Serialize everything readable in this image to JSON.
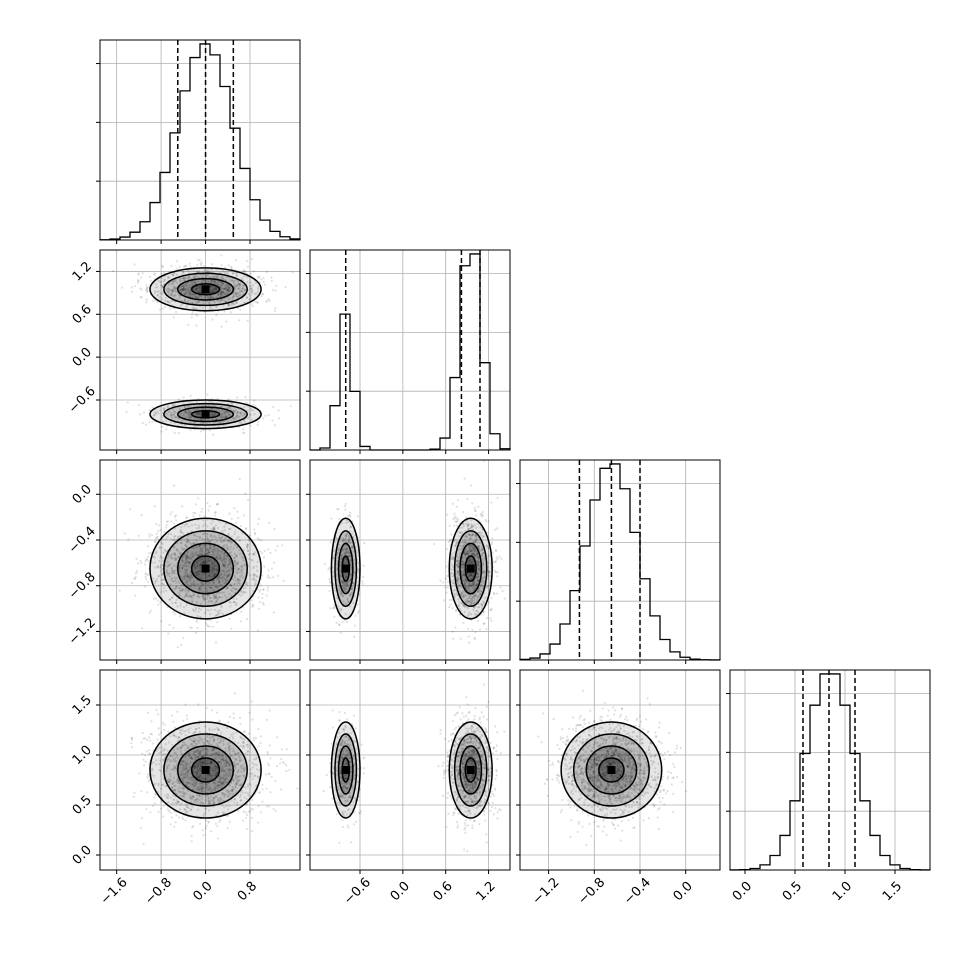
{
  "chart_data": {
    "type": "corner",
    "n_params": 4,
    "params": [
      {
        "index": 0,
        "range": [
          -1.9,
          1.7
        ],
        "ticks": [
          -1.6,
          -0.8,
          0.0,
          0.8
        ],
        "tick_labels": [
          "−1.6",
          "−0.8",
          "0.0",
          "0.8"
        ]
      },
      {
        "index": 1,
        "range": [
          -1.3,
          1.5
        ],
        "ticks": [
          -0.6,
          0.0,
          0.6,
          1.2
        ],
        "tick_labels": [
          "−0.6",
          "0.0",
          "0.6",
          "1.2"
        ]
      },
      {
        "index": 2,
        "range": [
          -1.45,
          0.3
        ],
        "ticks": [
          -1.2,
          -0.8,
          -0.4,
          0.0
        ],
        "tick_labels": [
          "−1.2",
          "−0.8",
          "−0.4",
          "0.0"
        ]
      },
      {
        "index": 3,
        "range": [
          -0.15,
          1.85
        ],
        "ticks": [
          0.0,
          0.5,
          1.0,
          1.5
        ],
        "tick_labels": [
          "0.0",
          "0.5",
          "1.0",
          "1.5"
        ]
      }
    ],
    "row_ticks": {
      "1": {
        "ticks": [
          -0.6,
          0.0,
          0.6,
          1.2
        ],
        "tick_labels": [
          "−0.6",
          "0.0",
          "0.6",
          "1.2"
        ]
      },
      "2": {
        "ticks": [
          -1.2,
          -0.8,
          -0.4,
          0.0
        ],
        "tick_labels": [
          "−1.2",
          "−0.8",
          "−0.4",
          "0.0"
        ]
      },
      "3": {
        "ticks": [
          0.0,
          0.5,
          1.0,
          1.5
        ],
        "tick_labels": [
          "0.0",
          "0.5",
          "1.0",
          "1.5"
        ]
      }
    },
    "distributions": [
      {
        "param": 0,
        "modes": [
          {
            "weight": 1.0,
            "mean": 0.0,
            "sd": 0.5
          }
        ]
      },
      {
        "param": 1,
        "modes": [
          {
            "weight": 0.7,
            "mean": 0.95,
            "sd": 0.15
          },
          {
            "weight": 0.3,
            "mean": -0.8,
            "sd": 0.1
          }
        ]
      },
      {
        "param": 2,
        "modes": [
          {
            "weight": 1.0,
            "mean": -0.65,
            "sd": 0.22
          }
        ]
      },
      {
        "param": 3,
        "modes": [
          {
            "weight": 1.0,
            "mean": 0.85,
            "sd": 0.24
          }
        ]
      }
    ],
    "histograms": [
      {
        "param": 0,
        "bins": 20,
        "quantiles": [
          -0.5,
          0.0,
          0.5
        ]
      },
      {
        "param": 1,
        "bins": 20,
        "quantiles": [
          -0.8,
          0.82,
          1.08
        ]
      },
      {
        "param": 2,
        "bins": 20,
        "quantiles": [
          -0.93,
          -0.65,
          -0.4
        ]
      },
      {
        "param": 3,
        "bins": 20,
        "quantiles": [
          0.58,
          0.84,
          1.1
        ]
      }
    ],
    "grid": true,
    "title": "",
    "xlabel": "",
    "ylabel": ""
  }
}
